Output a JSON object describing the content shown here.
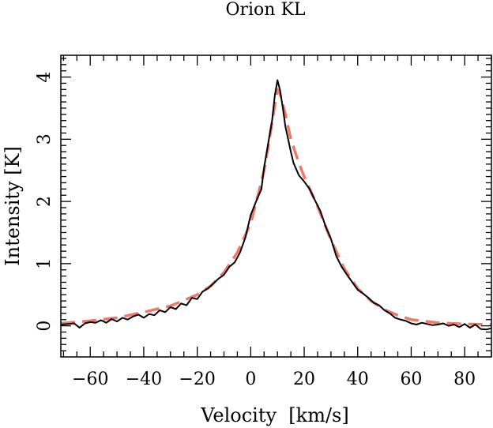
{
  "chart_data": {
    "type": "line",
    "title": "Orion KL",
    "xlabel": "Velocity  [km/s]",
    "ylabel": "Intensity [K]",
    "xlim": [
      -71,
      90
    ],
    "ylim": [
      -0.5,
      4.35
    ],
    "x_ticks": [
      -60,
      -40,
      -20,
      0,
      20,
      40,
      60,
      80
    ],
    "x_tick_labels": [
      "−60",
      "−40",
      "−20",
      "0",
      "20",
      "40",
      "60",
      "80"
    ],
    "y_ticks": [
      0,
      1,
      2,
      3,
      4
    ],
    "y_tick_labels": [
      "0",
      "1",
      "2",
      "3",
      "4"
    ],
    "grid": false,
    "legend": "none",
    "series": [
      {
        "style": "solid",
        "color": "#000000",
        "points": [
          [
            -71,
            0.02
          ],
          [
            -68,
            0.03
          ],
          [
            -66,
            0.04
          ],
          [
            -64,
            -0.03
          ],
          [
            -62,
            0.04
          ],
          [
            -60,
            0.06
          ],
          [
            -58,
            0.05
          ],
          [
            -56,
            0.09
          ],
          [
            -54,
            0.05
          ],
          [
            -52,
            0.11
          ],
          [
            -50,
            0.07
          ],
          [
            -48,
            0.13
          ],
          [
            -46,
            0.1
          ],
          [
            -44,
            0.15
          ],
          [
            -42,
            0.18
          ],
          [
            -40,
            0.13
          ],
          [
            -38,
            0.19
          ],
          [
            -36,
            0.17
          ],
          [
            -34,
            0.25
          ],
          [
            -32,
            0.22
          ],
          [
            -30,
            0.3
          ],
          [
            -28,
            0.27
          ],
          [
            -26,
            0.36
          ],
          [
            -24,
            0.33
          ],
          [
            -22,
            0.45
          ],
          [
            -20,
            0.43
          ],
          [
            -18,
            0.55
          ],
          [
            -16,
            0.6
          ],
          [
            -14,
            0.68
          ],
          [
            -12,
            0.76
          ],
          [
            -10,
            0.82
          ],
          [
            -8,
            0.95
          ],
          [
            -6,
            1.02
          ],
          [
            -4,
            1.18
          ],
          [
            -2,
            1.42
          ],
          [
            0,
            1.78
          ],
          [
            2,
            2.0
          ],
          [
            4,
            2.2
          ],
          [
            5,
            2.55
          ],
          [
            6,
            2.8
          ],
          [
            7,
            3.05
          ],
          [
            8,
            3.3
          ],
          [
            9,
            3.7
          ],
          [
            10,
            3.95
          ],
          [
            11,
            3.78
          ],
          [
            12,
            3.5
          ],
          [
            13,
            3.2
          ],
          [
            14,
            3.0
          ],
          [
            15,
            2.8
          ],
          [
            16,
            2.62
          ],
          [
            18,
            2.42
          ],
          [
            20,
            2.32
          ],
          [
            22,
            2.2
          ],
          [
            24,
            2.02
          ],
          [
            26,
            1.85
          ],
          [
            28,
            1.6
          ],
          [
            30,
            1.4
          ],
          [
            32,
            1.12
          ],
          [
            34,
            0.95
          ],
          [
            36,
            0.82
          ],
          [
            38,
            0.7
          ],
          [
            40,
            0.58
          ],
          [
            42,
            0.52
          ],
          [
            44,
            0.45
          ],
          [
            46,
            0.37
          ],
          [
            48,
            0.33
          ],
          [
            50,
            0.25
          ],
          [
            52,
            0.2
          ],
          [
            54,
            0.13
          ],
          [
            56,
            0.1
          ],
          [
            58,
            0.08
          ],
          [
            60,
            0.04
          ],
          [
            62,
            0.02
          ],
          [
            64,
            0.05
          ],
          [
            66,
            0.03
          ],
          [
            68,
            0.01
          ],
          [
            70,
            0.02
          ],
          [
            72,
            0.04
          ],
          [
            74,
            0.0
          ],
          [
            76,
            0.02
          ],
          [
            78,
            -0.02
          ],
          [
            80,
            0.03
          ],
          [
            82,
            -0.03
          ],
          [
            84,
            0.02
          ],
          [
            86,
            -0.05
          ],
          [
            88,
            -0.06
          ],
          [
            90,
            -0.04
          ]
        ]
      },
      {
        "style": "dashed",
        "color": "#f07868",
        "points": [
          [
            -71,
            0.04
          ],
          [
            -60,
            0.08
          ],
          [
            -50,
            0.13
          ],
          [
            -40,
            0.22
          ],
          [
            -30,
            0.32
          ],
          [
            -20,
            0.5
          ],
          [
            -15,
            0.64
          ],
          [
            -10,
            0.86
          ],
          [
            -5,
            1.18
          ],
          [
            0,
            1.65
          ],
          [
            3,
            2.15
          ],
          [
            5,
            2.5
          ],
          [
            7,
            3.0
          ],
          [
            9,
            3.55
          ],
          [
            10,
            3.8
          ],
          [
            11,
            3.72
          ],
          [
            13,
            3.4
          ],
          [
            15,
            3.0
          ],
          [
            18,
            2.62
          ],
          [
            20,
            2.4
          ],
          [
            25,
            1.92
          ],
          [
            30,
            1.38
          ],
          [
            35,
            0.92
          ],
          [
            40,
            0.6
          ],
          [
            45,
            0.4
          ],
          [
            50,
            0.26
          ],
          [
            55,
            0.17
          ],
          [
            60,
            0.1
          ],
          [
            70,
            0.05
          ],
          [
            80,
            0.03
          ],
          [
            90,
            0.02
          ]
        ]
      }
    ]
  }
}
